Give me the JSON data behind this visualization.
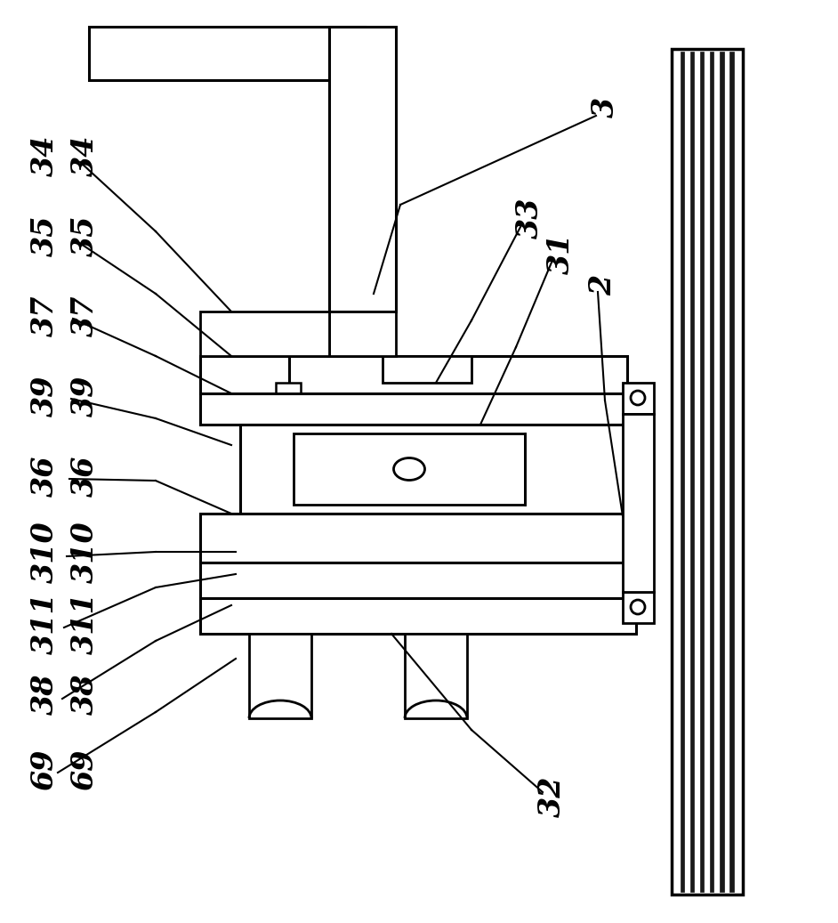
{
  "bg_color": "#ffffff",
  "line_color": "#000000",
  "figsize": [
    9.42,
    10.37
  ],
  "dpi": 100,
  "lw": 2.0
}
